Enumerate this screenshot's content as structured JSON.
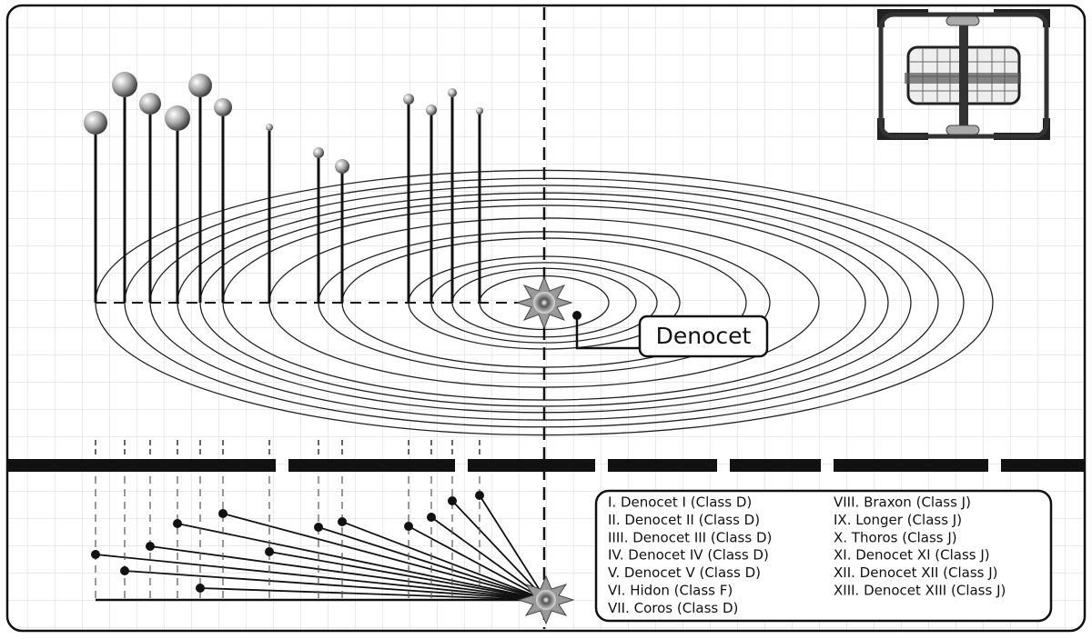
{
  "star": {
    "label": "Denocet"
  },
  "legend": {
    "items": [
      "I. Denocet I (Class D)",
      "II. Denocet II (Class D)",
      "IIII. Denocet III (Class D)",
      "IV. Denocet IV (Class D)",
      "V. Denocet V (Class D)",
      "VI. Hidon (Class F)",
      "VII. Coros (Class D)",
      "VIII. Braxon (Class J)",
      "IX. Longer (Class J)",
      "X. Thoros (Class J)",
      "XI. Denocet XI (Class J)",
      "XII. Denocet XII (Class J)",
      "XIII. Denocet XIII (Class J)"
    ]
  }
}
